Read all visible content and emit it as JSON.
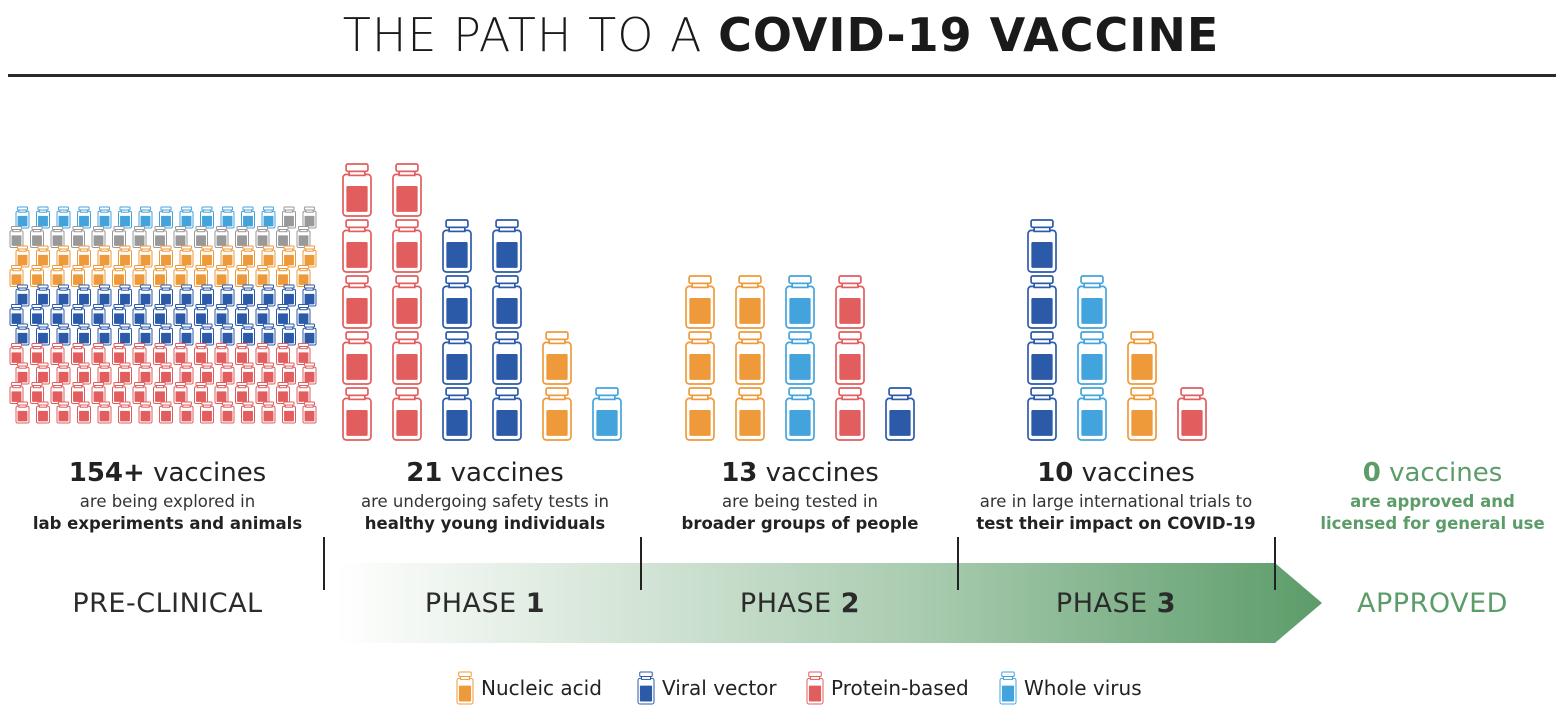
{
  "header": {
    "title_light": "THE PATH TO A ",
    "title_bold": "COVID-19 VACCINE"
  },
  "colors": {
    "nucleic_acid": "#ee9a3a",
    "viral_vector": "#2b5aa8",
    "protein_based": "#e25d5d",
    "whole_virus": "#43a3dc",
    "other": "#999999",
    "arrow_dark": "#5c9c69",
    "approved": "#5c9c69"
  },
  "stages": [
    {
      "id": "pre-clinical",
      "count_num": "154+",
      "count_word": " vaccines",
      "line1": "are being explored in",
      "line2": "lab experiments and animals",
      "phase_prefix": "PRE-CLINICAL",
      "phase_num": ""
    },
    {
      "id": "phase-1",
      "count_num": "21",
      "count_word": " vaccines",
      "line1": "are undergoing safety tests in",
      "line2": "healthy young individuals",
      "phase_prefix": "PHASE ",
      "phase_num": "1"
    },
    {
      "id": "phase-2",
      "count_num": "13",
      "count_word": " vaccines",
      "line1": "are being tested in",
      "line2": "broader groups of people",
      "phase_prefix": "PHASE ",
      "phase_num": "2"
    },
    {
      "id": "phase-3",
      "count_num": "10",
      "count_word": " vaccines",
      "line1": "are in large international trials to",
      "line2": "test their impact on COVID-19",
      "phase_prefix": "PHASE ",
      "phase_num": "3"
    },
    {
      "id": "approved",
      "count_num": "0",
      "count_word": " vaccines",
      "line1": "are approved and",
      "line2": "licensed for general use",
      "phase_prefix": "APPROVED",
      "phase_num": ""
    }
  ],
  "legend": [
    {
      "key": "nucleic_acid",
      "label": "Nucleic acid",
      "icon": "vial-icon"
    },
    {
      "key": "viral_vector",
      "label": "Viral vector",
      "icon": "vial-icon"
    },
    {
      "key": "protein_based",
      "label": "Protein-based",
      "icon": "vial-icon"
    },
    {
      "key": "whole_virus",
      "label": "Whole virus",
      "icon": "vial-icon"
    }
  ],
  "vial_columns": {
    "phase-1": [
      [
        "protein_based",
        "protein_based",
        "protein_based",
        "protein_based",
        "protein_based"
      ],
      [
        "protein_based",
        "protein_based",
        "protein_based",
        "protein_based",
        "protein_based"
      ],
      [
        "viral_vector",
        "viral_vector",
        "viral_vector",
        "viral_vector"
      ],
      [
        "viral_vector",
        "viral_vector",
        "viral_vector",
        "viral_vector"
      ],
      [
        "nucleic_acid",
        "nucleic_acid"
      ],
      [
        "whole_virus"
      ]
    ],
    "phase-2": [
      [
        "nucleic_acid",
        "nucleic_acid",
        "nucleic_acid"
      ],
      [
        "nucleic_acid",
        "nucleic_acid",
        "nucleic_acid"
      ],
      [
        "whole_virus",
        "whole_virus",
        "whole_virus"
      ],
      [
        "protein_based",
        "protein_based",
        "protein_based"
      ],
      [
        "viral_vector"
      ]
    ],
    "phase-3": [
      [
        "viral_vector",
        "viral_vector",
        "viral_vector",
        "viral_vector"
      ],
      [
        "whole_virus",
        "whole_virus",
        "whole_virus"
      ],
      [
        "nucleic_acid",
        "nucleic_acid"
      ],
      [
        "protein_based"
      ]
    ]
  },
  "preclinical_rows": [
    [
      "whole_virus",
      13,
      "other",
      2
    ],
    [
      "other",
      15
    ],
    [
      "nucleic_acid",
      15
    ],
    [
      "nucleic_acid",
      15
    ],
    [
      "viral_vector",
      15
    ],
    [
      "viral_vector",
      15
    ],
    [
      "viral_vector",
      15
    ],
    [
      "protein_based",
      15
    ],
    [
      "protein_based",
      15
    ],
    [
      "protein_based",
      15
    ],
    [
      "protein_based",
      15
    ]
  ]
}
